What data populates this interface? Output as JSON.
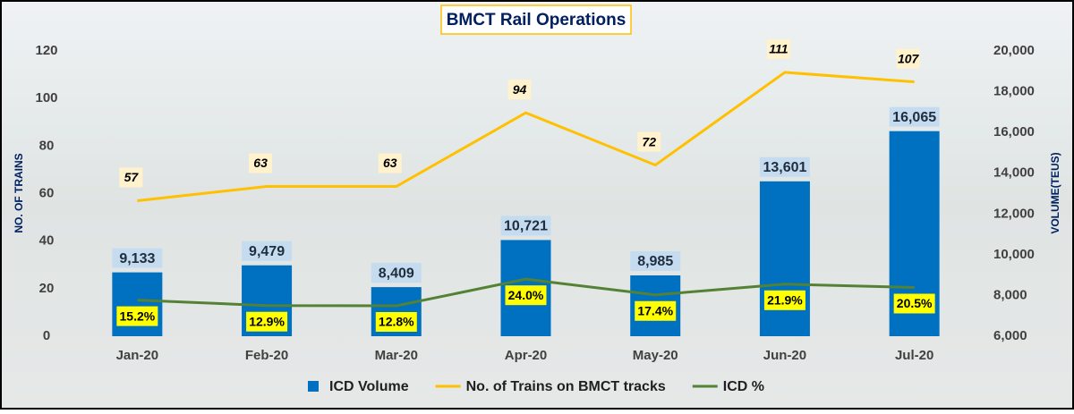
{
  "chart_data": {
    "type": "combo",
    "title": "BMCT Rail Operations",
    "y_label": "NO. OF TRAINS",
    "y2_label": "VOLUME(TEUS)",
    "categories": [
      "Jan-20",
      "Feb-20",
      "Mar-20",
      "Apr-20",
      "May-20",
      "Jun-20",
      "Jul-20"
    ],
    "ylim": [
      0,
      120
    ],
    "yticks": [
      0,
      20,
      40,
      60,
      80,
      100,
      120
    ],
    "y2lim": [
      6000,
      20000
    ],
    "y2ticks": [
      {
        "value": 6000,
        "label": "6,000"
      },
      {
        "value": 8000,
        "label": "8,000"
      },
      {
        "value": 10000,
        "label": "10,000"
      },
      {
        "value": 12000,
        "label": "12,000"
      },
      {
        "value": 14000,
        "label": "14,000"
      },
      {
        "value": 16000,
        "label": "16,000"
      },
      {
        "value": 18000,
        "label": "18,000"
      },
      {
        "value": 20000,
        "label": "20,000"
      }
    ],
    "legend": "bottom",
    "series": [
      {
        "name": "ICD Volume",
        "type": "bar",
        "axis": "y2",
        "color": "#0070c0",
        "values": [
          9133,
          9479,
          8409,
          10721,
          8985,
          13601,
          16065
        ],
        "value_labels": [
          "9,133",
          "9,479",
          "8,409",
          "10,721",
          "8,985",
          "13,601",
          "16,065"
        ]
      },
      {
        "name": "No. of Trains on BMCT tracks",
        "type": "line",
        "axis": "y",
        "color": "#ffc000",
        "values": [
          57,
          63,
          63,
          94,
          72,
          111,
          107
        ]
      },
      {
        "name": "ICD %",
        "type": "line",
        "axis": "y",
        "color": "#548235",
        "values": [
          15.2,
          12.9,
          12.8,
          24.0,
          17.4,
          21.9,
          20.5
        ],
        "value_labels": [
          "15.2%",
          "12.9%",
          "12.8%",
          "24.0%",
          "17.4%",
          "21.9%",
          "20.5%"
        ]
      }
    ]
  }
}
